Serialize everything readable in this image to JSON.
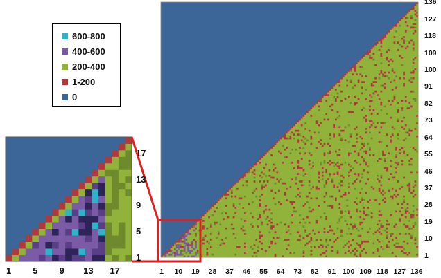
{
  "chart_data": [
    {
      "type": "heatmap",
      "title": "",
      "xlabel": "",
      "ylabel": "",
      "x_ticks": [
        "1",
        "10",
        "19",
        "28",
        "37",
        "46",
        "55",
        "64",
        "73",
        "82",
        "91",
        "100",
        "109",
        "118",
        "127",
        "136"
      ],
      "y_ticks": [
        "1",
        "10",
        "19",
        "28",
        "37",
        "46",
        "55",
        "64",
        "73",
        "82",
        "91",
        "100",
        "109",
        "118",
        "127",
        "136"
      ],
      "x_range": [
        1,
        136
      ],
      "y_range": [
        1,
        136
      ],
      "structure": "lower-triangular matrix; cells above the diagonal are 0",
      "diagonal_class": "1-200",
      "dominant_class_below_diagonal": "200-400",
      "scattered_class": "1-200",
      "highlight_region": {
        "x": [
          1,
          19
        ],
        "y": [
          1,
          19
        ],
        "color": "#e02020"
      }
    },
    {
      "type": "heatmap",
      "title": "",
      "x_ticks": [
        "1",
        "5",
        "9",
        "13",
        "17"
      ],
      "y_ticks": [
        "1",
        "5",
        "9",
        "13",
        "17"
      ],
      "x_range": [
        1,
        19
      ],
      "y_range": [
        1,
        19
      ],
      "note": "zoomed inset of highlighted region",
      "diagonal_class": "1-200",
      "dominant_classes": [
        "400-600",
        "600-800",
        "200-400"
      ]
    }
  ],
  "legend": {
    "items": [
      {
        "label": "600-800",
        "color": "#2eb3c8"
      },
      {
        "label": "400-600",
        "color": "#7b5aa6"
      },
      {
        "label": "200-400",
        "color": "#92b33b"
      },
      {
        "label": "1-200",
        "color": "#b0393a"
      },
      {
        "label": "0",
        "color": "#3c6697"
      }
    ]
  },
  "colors": {
    "zero": "#3c6697",
    "highlight": "#e02020"
  }
}
